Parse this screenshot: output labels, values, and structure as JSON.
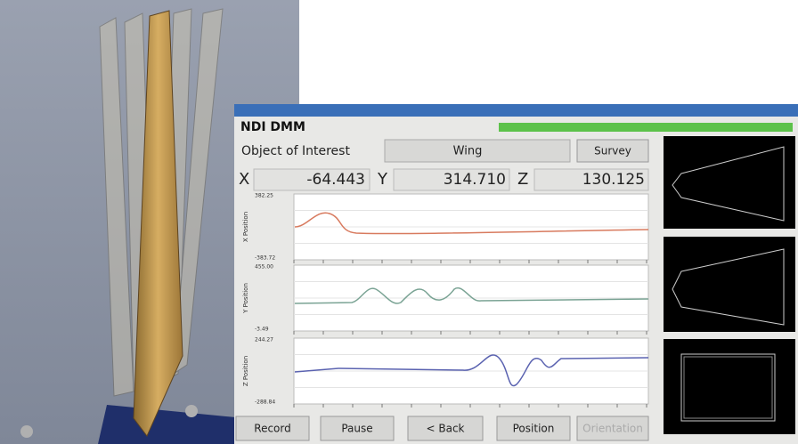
{
  "app": {
    "title": "NDI DMM",
    "object_label": "Object of Interest",
    "object_value": "Wing",
    "survey_button": "Survey",
    "coordinates": {
      "x_label": "X",
      "x_value": "-64.443",
      "y_label": "Y",
      "y_value": "314.710",
      "z_label": "Z",
      "z_value": "130.125"
    },
    "plots": [
      {
        "axis_label": "X Position",
        "top_label": "382.25",
        "bottom_label": "-383.72"
      },
      {
        "axis_label": "Y Position",
        "top_label": "455.00",
        "bottom_label": "-3.49"
      },
      {
        "axis_label": "Z Position",
        "top_label": "244.27",
        "bottom_label": "-288.84"
      }
    ],
    "buttons": [
      "Record",
      "Pause",
      "< Back",
      "Position",
      "Orientation"
    ]
  }
}
